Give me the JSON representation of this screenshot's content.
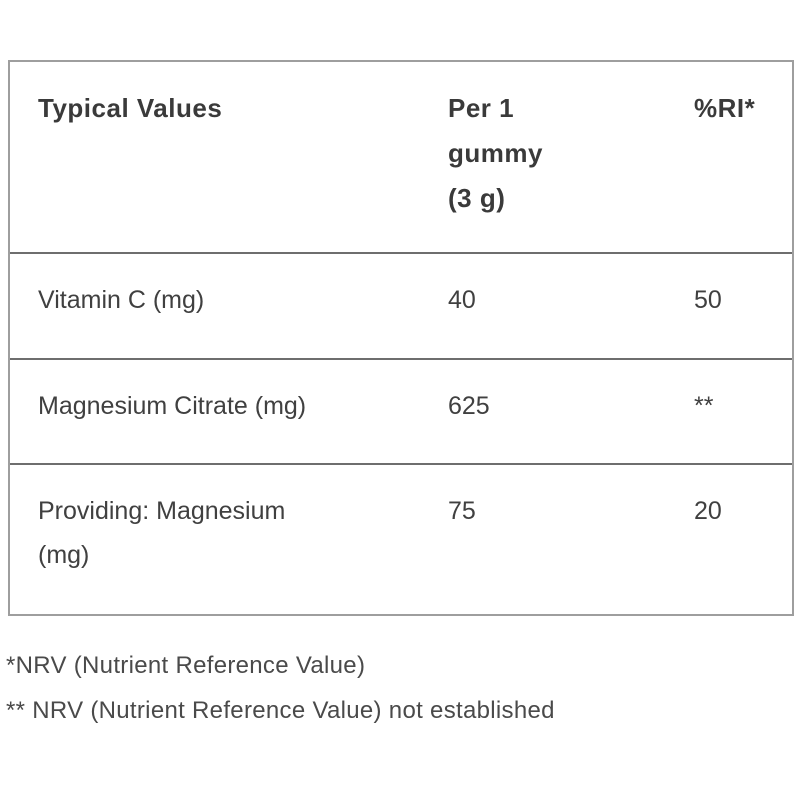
{
  "table": {
    "columns": [
      {
        "label": "Typical Values"
      },
      {
        "label": "Per 1\ngummy\n(3 g)"
      },
      {
        "label": "%RI*"
      }
    ],
    "rows": [
      {
        "name": "Vitamin C (mg)",
        "per_gummy": "40",
        "ri": "50"
      },
      {
        "name": "Magnesium Citrate (mg)",
        "per_gummy": "625",
        "ri": "**"
      },
      {
        "name": "Providing: Magnesium\n(mg)",
        "per_gummy": "75",
        "ri": "20"
      }
    ]
  },
  "footnotes": {
    "nrv": "*NRV (Nutrient Reference Value)",
    "nrv_not_established": "** NRV (Nutrient Reference Value) not established"
  },
  "colors": {
    "text": "#3b3b3b",
    "footnote_text": "#4a4a4a",
    "outer_border": "#9e9e9e",
    "row_divider": "#6e6e6e",
    "background": "#ffffff"
  }
}
